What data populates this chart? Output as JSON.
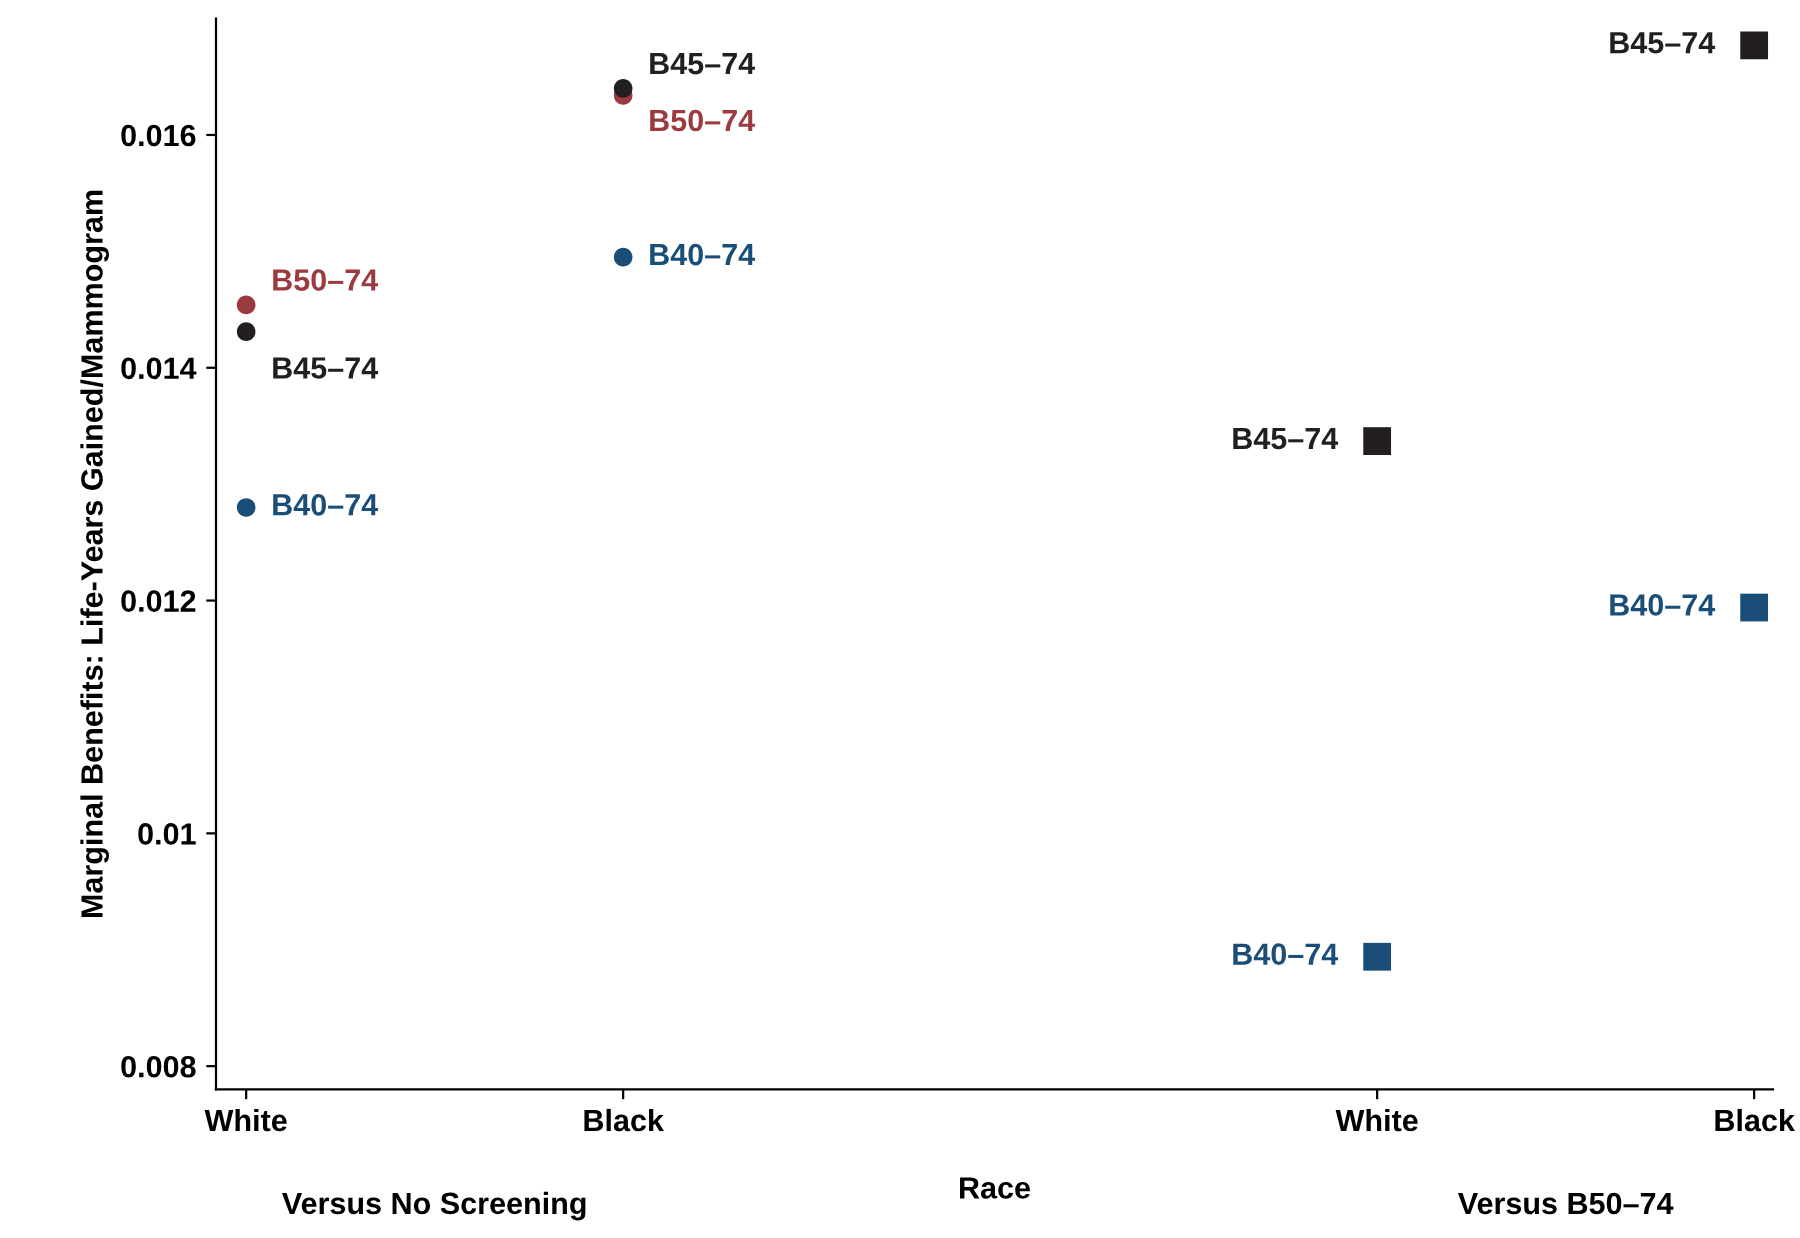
{
  "chart_data": {
    "type": "scatter",
    "xlabel": "Race",
    "ylabel": "Marginal Benefits: Life-Years Gained/Mammogram",
    "categories": [
      "White",
      "Black",
      null,
      "White",
      "Black"
    ],
    "ylim": [
      0.0078,
      0.017
    ],
    "yticks": [
      0.008,
      {
        "value": 0.01,
        "label": "0.01"
      },
      0.012,
      0.014,
      0.016
    ],
    "grid": false,
    "legend": false,
    "annotations": [
      "Versus No Screening",
      "Versus B50–74"
    ],
    "series": [
      {
        "name": "B45–74",
        "color": "#231f20",
        "marker": "circle",
        "values": [
          0.01431,
          0.0164,
          null,
          null,
          null
        ]
      },
      {
        "name": "B50–74",
        "color": "#9b3a3f",
        "marker": "circle",
        "values": [
          0.01454,
          0.01634,
          null,
          null,
          null
        ]
      },
      {
        "name": "B40–74",
        "color": "#1a4e78",
        "marker": "circle",
        "values": [
          0.0128,
          0.01495,
          null,
          null,
          null
        ]
      },
      {
        "name": "B45–74",
        "color": "#231f20",
        "marker": "square",
        "values": [
          null,
          null,
          null,
          0.01337,
          0.01677
        ]
      },
      {
        "name": "B40–74",
        "color": "#1a4e78",
        "marker": "square",
        "values": [
          null,
          null,
          null,
          0.00894,
          0.01194
        ]
      }
    ]
  }
}
